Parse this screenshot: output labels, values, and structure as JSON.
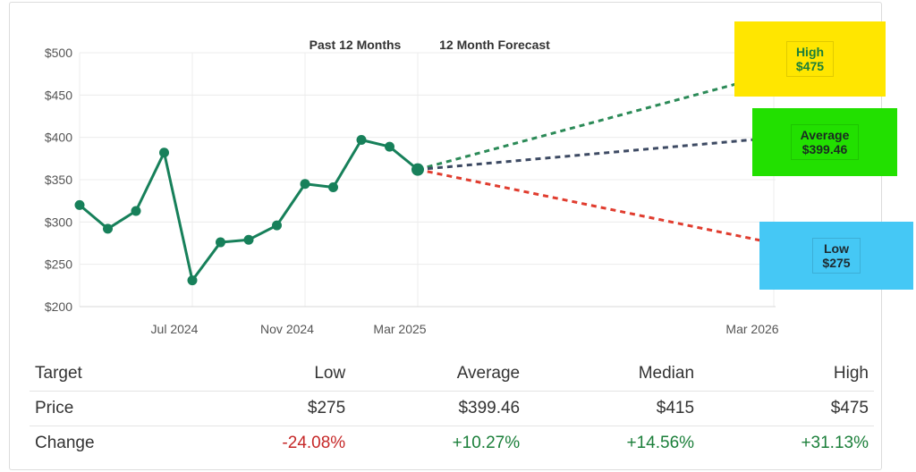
{
  "chart_data": {
    "type": "line",
    "legend_headers": [
      "Past 12 Months",
      "12 Month Forecast"
    ],
    "y_ticks": [
      "$500",
      "$450",
      "$400",
      "$350",
      "$300",
      "$250",
      "$200"
    ],
    "y_tick_values": [
      500,
      450,
      400,
      350,
      300,
      250,
      200
    ],
    "ylim": [
      200,
      500
    ],
    "x_ticks": [
      "Jul 2024",
      "Nov 2024",
      "Mar 2025",
      "Mar 2026"
    ],
    "grid": true,
    "series": [
      {
        "values": [
          320,
          292,
          313,
          382,
          231,
          276,
          279,
          296,
          345,
          341,
          397,
          389,
          362
        ],
        "color": "#17805a"
      }
    ],
    "forecast": {
      "start_value": 362,
      "high": {
        "label": "High",
        "value_label": "$475",
        "value": 475,
        "color": "#2b8a57",
        "highlight": "#ffe600"
      },
      "average": {
        "label": "Average",
        "value_label": "$399.46",
        "value": 399.46,
        "color": "#3d4a63",
        "highlight": "#22e000"
      },
      "low": {
        "label": "Low",
        "value_label": "$275",
        "value": 275,
        "color": "#e03c2e",
        "highlight": "#45c8f5"
      }
    }
  },
  "table": {
    "headers": [
      "Target",
      "Low",
      "Average",
      "Median",
      "High"
    ],
    "rows": [
      [
        "Price",
        "$275",
        "$399.46",
        "$415",
        "$475"
      ],
      [
        "Change",
        "-24.08%",
        "+10.27%",
        "+14.56%",
        "+31.13%"
      ]
    ]
  }
}
